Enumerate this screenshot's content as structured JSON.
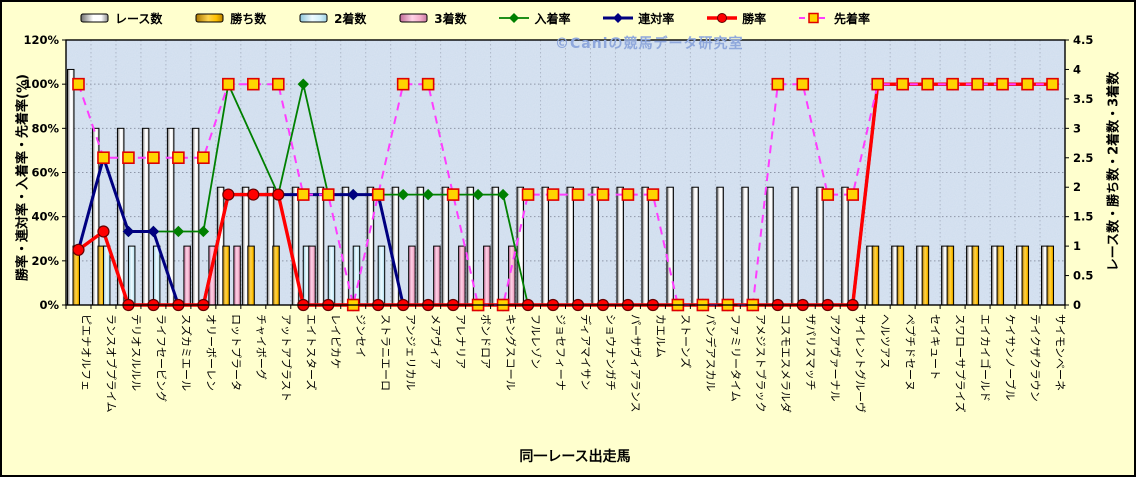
{
  "watermark": "©Caniの競馬データ研究室",
  "colors": {
    "page_bg": "#ffffce",
    "plot_bg": "#cedced",
    "grid": "#8e96a8",
    "races_bar": "#e8e8e8",
    "wins_bar": "#ffc000",
    "seconds_bar": "#c9eef8",
    "thirds_bar": "#f2a6c6",
    "nyuchaku_line": "#008000",
    "rentai_line": "#000080",
    "shoritsu_line": "#ff0000",
    "senchaku_line": "#ff3dff",
    "senchaku_marker_fill": "#ffd400",
    "senchaku_marker_stroke": "#e00000"
  },
  "chart_data": {
    "type": "bar+line combo",
    "title": "",
    "xlabel": "同一レース出走馬",
    "left_axis": {
      "title": "勝率・連対率・入着率・先着率(%)",
      "min": 0,
      "max": 120,
      "ticks": [
        "0%",
        "20%",
        "40%",
        "60%",
        "80%",
        "100%",
        "120%"
      ]
    },
    "right_axis": {
      "title": "レース数・勝ち数・2着数・3着数",
      "min": 0,
      "max": 4.5,
      "ticks": [
        "0",
        "0.5",
        "1",
        "1.5",
        "2",
        "2.5",
        "3",
        "3.5",
        "4",
        "4.5"
      ]
    },
    "legend": [
      "レース数",
      "勝ち数",
      "2着数",
      "3着数",
      "入着率",
      "連対率",
      "勝率",
      "先着率"
    ],
    "categories": [
      "ピエナオルフェ",
      "ランスオブプライム",
      "テリオスルルル",
      "ライフセービング",
      "スズカミエール",
      "オリーボーレン",
      "ロットプラータ",
      "チャイボーグ",
      "アットアブラスト",
      "エイトスターズ",
      "レイピカケ",
      "ジンセイ",
      "ストラニエーロ",
      "アンジェリカル",
      "メアヴィア",
      "アレナリア",
      "ボンドロア",
      "キングスコール",
      "フルレゾン",
      "ジョセフィーナ",
      "ディアマイサン",
      "ショウナンガチ",
      "パーサヴィアランス",
      "カエルム",
      "ストーンズ",
      "パンデアスカル",
      "ファミリータイム",
      "アメジストブラック",
      "コスモエスメラルダ",
      "ザパリスマッチ",
      "アクアヴァーナル",
      "サイレントグルーヴ",
      "ヘルツアス",
      "ペプチドセーヌ",
      "セイキュート",
      "スワローサプライズ",
      "エイカイゴールド",
      "ケイサンノーブル",
      "テイクザクラウン",
      "サイモンベーネ"
    ],
    "bar_series": [
      {
        "name": "レース数",
        "axis": "right",
        "color_key": "races_bar",
        "values": [
          4,
          3,
          3,
          3,
          3,
          3,
          2,
          2,
          2,
          2,
          2,
          2,
          2,
          2,
          2,
          2,
          2,
          2,
          2,
          2,
          2,
          2,
          2,
          2,
          2,
          2,
          2,
          2,
          2,
          2,
          2,
          2,
          1,
          1,
          1,
          1,
          1,
          1,
          1,
          1
        ]
      },
      {
        "name": "勝ち数",
        "axis": "right",
        "color_key": "wins_bar",
        "values": [
          1,
          1,
          0,
          0,
          0,
          0,
          1,
          1,
          1,
          0,
          0,
          0,
          0,
          0,
          0,
          0,
          0,
          0,
          0,
          0,
          0,
          0,
          0,
          0,
          0,
          0,
          0,
          0,
          0,
          0,
          0,
          0,
          1,
          1,
          1,
          1,
          1,
          1,
          1,
          1
        ]
      },
      {
        "name": "2着数",
        "axis": "right",
        "color_key": "seconds_bar",
        "values": [
          0,
          1,
          1,
          1,
          0,
          0,
          0,
          0,
          0,
          1,
          1,
          1,
          1,
          0,
          0,
          0,
          0,
          0,
          0,
          0,
          0,
          0,
          0,
          0,
          0,
          0,
          0,
          0,
          0,
          0,
          0,
          0,
          0,
          0,
          0,
          0,
          0,
          0,
          0,
          0
        ]
      },
      {
        "name": "3着数",
        "axis": "right",
        "color_key": "thirds_bar",
        "values": [
          0,
          0,
          0,
          0,
          1,
          1,
          1,
          0,
          0,
          1,
          0,
          0,
          0,
          1,
          1,
          1,
          1,
          1,
          0,
          0,
          0,
          0,
          0,
          0,
          0,
          0,
          0,
          0,
          0,
          0,
          0,
          0,
          0,
          0,
          0,
          0,
          0,
          0,
          0,
          0
        ]
      }
    ],
    "line_series": [
      {
        "name": "入着率",
        "axis": "left",
        "color_key": "nyuchaku_line",
        "marker": "diamond",
        "dash": null,
        "width": 1.8,
        "values": [
          25,
          66.7,
          33.3,
          33.3,
          33.3,
          33.3,
          100,
          null,
          50,
          100,
          50,
          50,
          50,
          50,
          50,
          50,
          50,
          50,
          0,
          0,
          0,
          0,
          0,
          0,
          0,
          0,
          0,
          0,
          0,
          0,
          0,
          0,
          100,
          100,
          100,
          100,
          100,
          100,
          100,
          100
        ]
      },
      {
        "name": "連対率",
        "axis": "left",
        "color_key": "rentai_line",
        "marker": "diamond",
        "dash": null,
        "width": 3,
        "values": [
          25,
          66.7,
          33.3,
          33.3,
          0,
          0,
          50,
          50,
          50,
          50,
          50,
          50,
          50,
          0,
          0,
          0,
          0,
          0,
          0,
          0,
          0,
          0,
          0,
          0,
          0,
          0,
          0,
          0,
          0,
          0,
          0,
          0,
          100,
          100,
          100,
          100,
          100,
          100,
          100,
          100
        ]
      },
      {
        "name": "勝率",
        "axis": "left",
        "color_key": "shoritsu_line",
        "marker": "circle",
        "dash": null,
        "width": 3.4,
        "values": [
          25,
          33.3,
          0,
          0,
          0,
          0,
          50,
          50,
          50,
          0,
          0,
          0,
          0,
          0,
          0,
          0,
          0,
          0,
          0,
          0,
          0,
          0,
          0,
          0,
          0,
          0,
          0,
          0,
          0,
          0,
          0,
          0,
          100,
          100,
          100,
          100,
          100,
          100,
          100,
          100
        ]
      },
      {
        "name": "先着率",
        "axis": "left",
        "color_key": "senchaku_line",
        "marker": "square",
        "dash": "8 6",
        "width": 2,
        "values": [
          100,
          66.7,
          66.7,
          66.7,
          66.7,
          66.7,
          100,
          100,
          100,
          50,
          50,
          0,
          50,
          100,
          100,
          50,
          0,
          0,
          50,
          50,
          50,
          50,
          50,
          50,
          0,
          0,
          0,
          0,
          100,
          100,
          50,
          50,
          100,
          100,
          100,
          100,
          100,
          100,
          100,
          100
        ]
      }
    ]
  }
}
